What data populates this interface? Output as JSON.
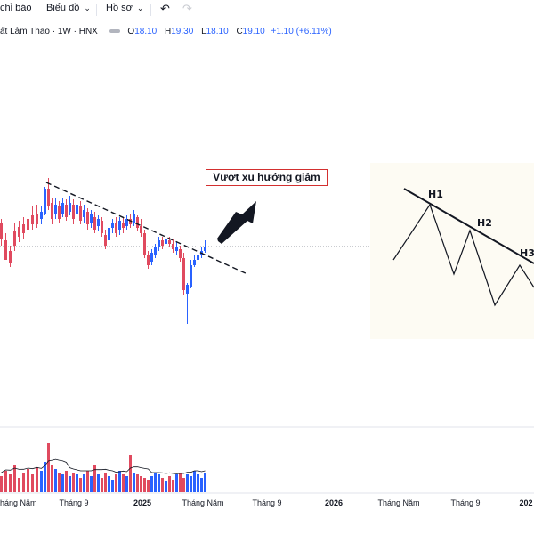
{
  "toolbar": {
    "indicators_label": "chỉ báo",
    "chart_label": "Biểu đồ",
    "profile_label": "Hồ sơ",
    "undo_icon": "undo-icon",
    "redo_icon": "redo-icon"
  },
  "legend": {
    "symbol": "ất Lâm Thao · 1W · HNX",
    "open_key": "O",
    "open": "18.10",
    "high_key": "H",
    "high": "19.30",
    "low_key": "L",
    "low": "18.10",
    "close_key": "C",
    "close": "19.10",
    "change": "+1.10 (+6.11%)"
  },
  "annotation": {
    "callout": "Vượt xu hướng giảm"
  },
  "inset": {
    "h1": "H1",
    "h2": "H2",
    "h3": "H3"
  },
  "colors": {
    "up": "#2962ff",
    "down": "#e04a5f",
    "callout_border": "#d32f2f",
    "price_line": "#9598a1"
  },
  "x_axis": {
    "labels": [
      "Tháng Năm",
      "Tháng 9",
      "2025",
      "Tháng Năm",
      "Tháng 9",
      "2026",
      "Tháng Năm",
      "Tháng 9",
      "202"
    ]
  },
  "chart_data": {
    "type": "candlestick",
    "interval": "1W",
    "exchange": "HNX",
    "last_candle": {
      "open": 18.1,
      "high": 19.3,
      "low": 18.1,
      "close": 19.1,
      "change": 1.1,
      "change_pct": 6.11
    },
    "trendline": "descending dashed line from the early peak through later highs, broken by the last candles",
    "volume_panel": true,
    "volume_moving_average": true
  }
}
